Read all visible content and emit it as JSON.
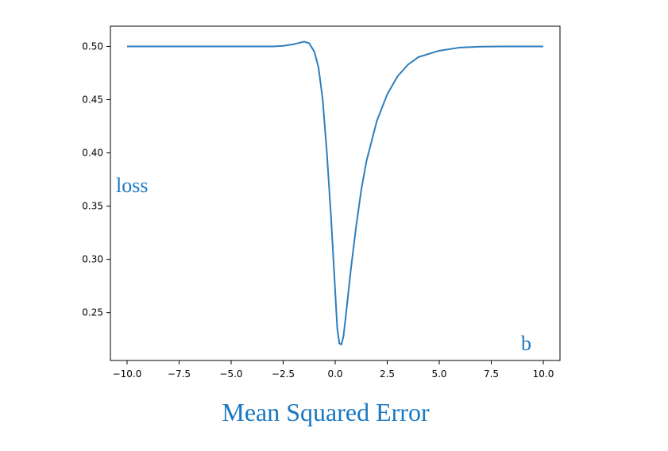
{
  "chart_data": {
    "type": "line",
    "title": "Mean Squared Error",
    "xlabel": "b",
    "ylabel": "loss",
    "xlim": [
      -10.8,
      10.8
    ],
    "ylim": [
      0.205,
      0.519
    ],
    "x_ticks": [
      -10,
      -7.5,
      -5,
      -2.5,
      0,
      2.5,
      5,
      7.5,
      10
    ],
    "x_tick_labels": [
      "−10.0",
      "−7.5",
      "−5.0",
      "−2.5",
      "0.0",
      "2.5",
      "5.0",
      "7.5",
      "10.0"
    ],
    "y_ticks": [
      0.25,
      0.3,
      0.35,
      0.4,
      0.45,
      0.5
    ],
    "y_tick_labels": [
      "0.25",
      "0.30",
      "0.35",
      "0.40",
      "0.45",
      "0.50"
    ],
    "grid": false,
    "legend": "none",
    "colors": {
      "line": "#2e7ebc",
      "label": "#1a78c2",
      "axes": "#000000"
    },
    "series": [
      {
        "points": [
          [
            -10,
            0.5
          ],
          [
            -9,
            0.5
          ],
          [
            -8,
            0.5
          ],
          [
            -7,
            0.5
          ],
          [
            -6,
            0.5
          ],
          [
            -5,
            0.5
          ],
          [
            -4,
            0.5
          ],
          [
            -3,
            0.5
          ],
          [
            -2.5,
            0.5005
          ],
          [
            -2,
            0.502
          ],
          [
            -1.5,
            0.5045
          ],
          [
            -1.25,
            0.503
          ],
          [
            -1.0,
            0.495
          ],
          [
            -0.8,
            0.48
          ],
          [
            -0.6,
            0.45
          ],
          [
            -0.4,
            0.4
          ],
          [
            -0.2,
            0.34
          ],
          [
            0,
            0.27
          ],
          [
            0.1,
            0.235
          ],
          [
            0.2,
            0.221
          ],
          [
            0.3,
            0.22
          ],
          [
            0.4,
            0.228
          ],
          [
            0.5,
            0.245
          ],
          [
            0.75,
            0.29
          ],
          [
            1.0,
            0.33
          ],
          [
            1.25,
            0.365
          ],
          [
            1.5,
            0.392
          ],
          [
            2.0,
            0.43
          ],
          [
            2.5,
            0.455
          ],
          [
            3.0,
            0.472
          ],
          [
            3.5,
            0.483
          ],
          [
            4.0,
            0.49
          ],
          [
            5.0,
            0.496
          ],
          [
            6.0,
            0.499
          ],
          [
            7.0,
            0.4998
          ],
          [
            8.0,
            0.5
          ],
          [
            10.0,
            0.5
          ]
        ]
      }
    ]
  }
}
